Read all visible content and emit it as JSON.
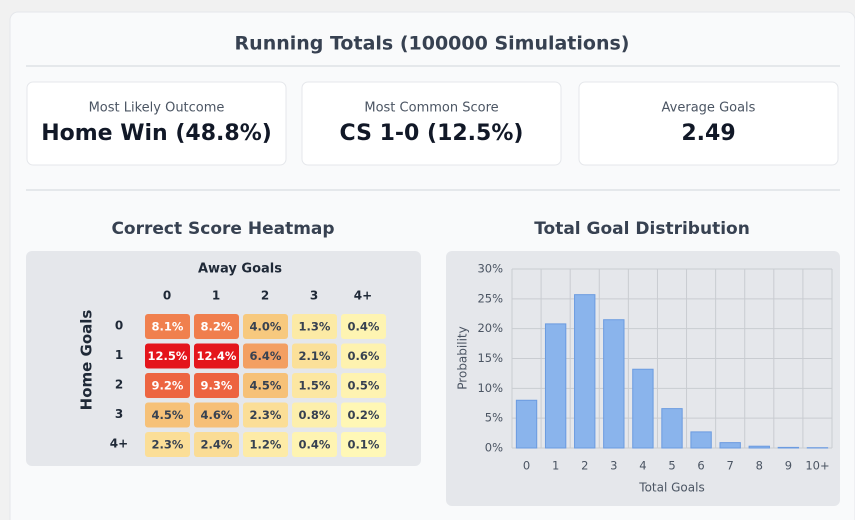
{
  "title": "Running Totals (100000 Simulations)",
  "cards": [
    {
      "label": "Most Likely Outcome",
      "value": "Home Win (48.8%)"
    },
    {
      "label": "Most Common Score",
      "value": "CS 1-0 (12.5%)"
    },
    {
      "label": "Average Goals",
      "value": "2.49"
    }
  ],
  "heatmap": {
    "title": "Correct Score Heatmap",
    "x_label": "Away Goals",
    "y_label": "Home Goals",
    "columns": [
      "0",
      "1",
      "2",
      "3",
      "4+"
    ],
    "rows": [
      "0",
      "1",
      "2",
      "3",
      "4+"
    ],
    "values": [
      [
        8.1,
        8.2,
        4.0,
        1.3,
        0.4
      ],
      [
        12.5,
        12.4,
        6.4,
        2.1,
        0.6
      ],
      [
        9.2,
        9.3,
        4.5,
        1.5,
        0.5
      ],
      [
        4.5,
        4.6,
        2.3,
        0.8,
        0.2
      ],
      [
        2.3,
        2.4,
        1.2,
        0.4,
        0.1
      ]
    ],
    "value_labels": [
      [
        "8.1%",
        "8.2%",
        "4.0%",
        "1.3%",
        "0.4%"
      ],
      [
        "12.5%",
        "12.4%",
        "6.4%",
        "2.1%",
        "0.6%"
      ],
      [
        "9.2%",
        "9.3%",
        "4.5%",
        "1.5%",
        "0.5%"
      ],
      [
        "4.5%",
        "4.6%",
        "2.3%",
        "0.8%",
        "0.2%"
      ],
      [
        "2.3%",
        "2.4%",
        "1.2%",
        "0.4%",
        "0.1%"
      ]
    ]
  },
  "distribution": {
    "type": "bar",
    "title": "Total Goal Distribution",
    "x_label": "Total Goals",
    "y_label": "Probability",
    "categories": [
      "0",
      "1",
      "2",
      "3",
      "4",
      "5",
      "6",
      "7",
      "8",
      "9",
      "10+"
    ],
    "values": [
      8.0,
      20.8,
      25.7,
      21.5,
      13.2,
      6.6,
      2.7,
      0.9,
      0.3,
      0.1,
      0.05
    ],
    "color": "#8ab4ec",
    "ylim": [
      0,
      30
    ],
    "yticks": [
      {
        "value": 0,
        "label": "0%"
      },
      {
        "value": 5,
        "label": "5%"
      },
      {
        "value": 10,
        "label": "10%"
      },
      {
        "value": 15,
        "label": "15%"
      },
      {
        "value": 20,
        "label": "20%"
      },
      {
        "value": 25,
        "label": "25%"
      },
      {
        "value": 30,
        "label": "30%"
      }
    ],
    "grid": true
  }
}
